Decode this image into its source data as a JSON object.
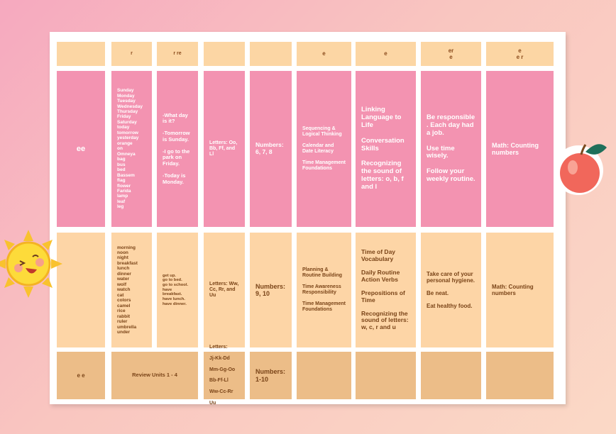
{
  "header": {
    "cells": [
      null,
      [
        "r"
      ],
      [
        "r  re"
      ],
      null,
      null,
      [
        "e"
      ],
      [
        "e"
      ],
      [
        "er",
        "e"
      ],
      [
        "e",
        "e r"
      ]
    ]
  },
  "rows": [
    {
      "cells": [
        [
          "ee"
        ],
        [
          "Sunday",
          "Monday",
          "Tuesday",
          "Wednesday",
          "Thursday",
          "Friday",
          "Saturday",
          "today",
          "tomorrow",
          "yesterday",
          "orange",
          "on",
          "Omneya",
          "bag",
          "bus",
          "bed",
          "Bassem",
          "flag",
          "flower",
          "Farida",
          "lamp",
          "leaf",
          "leg"
        ],
        [
          "-What day is it?",
          "-Tomorrow is Sunday.",
          "-I go to the park on Friday.",
          "-Today is Monday."
        ],
        [
          "Letters: Oo, Bb, Ff, and Ll"
        ],
        [
          "Numbers: 6, 7, 8"
        ],
        [
          "Sequencing & Logical Thinking",
          "Calendar and Date Literacy",
          "Time Management Foundations"
        ],
        [
          "Linking Language to Life",
          "Conversation Skills",
          "Recognizing the sound of letters: o, b, f and l"
        ],
        [
          "Be responsible . Each day had a job.",
          "Use time wisely.",
          "Follow your weekly routine."
        ],
        [
          "Math: Counting numbers"
        ]
      ]
    },
    {
      "cells": [
        null,
        [
          "morning",
          "noon",
          "night",
          "breakfast",
          "lunch",
          "dinner",
          "water",
          "wolf",
          "watch",
          "cat",
          "colors",
          "camel",
          "rice",
          "rabbit",
          "ruler",
          "umbrella",
          "under"
        ],
        [
          "get up.",
          "go to bed.",
          "go to school.",
          "have breakfast.",
          "have lunch.",
          "have dinner."
        ],
        [
          "Letters: Ww, Cc, Rr, and Uu"
        ],
        [
          "Numbers: 9, 10"
        ],
        [
          "Planning & Routine Building",
          "Time Awareness Responsibility",
          "Time Management Foundations"
        ],
        [
          "Time of Day Vocabulary",
          "Daily Routine Action Verbs",
          "Prepositions of Time",
          "Recognizing the sound of letters: w, c, r and u"
        ],
        [
          "Take care of your personal hygiene.",
          "Be neat.",
          "Eat healthy food."
        ],
        [
          "Math: Counting numbers"
        ]
      ]
    },
    {
      "cells": [
        [
          "e  e"
        ],
        [
          "Review Units 1 - 4"
        ],
        [
          "Letters:",
          "Jj-Kk-Dd",
          "Mm-Gg-Oo",
          "Bb-Ff-Ll",
          "Ww-Cc-Rr",
          "Uu"
        ],
        [
          "Numbers: 1-10"
        ],
        null,
        null,
        null,
        null
      ]
    }
  ]
}
